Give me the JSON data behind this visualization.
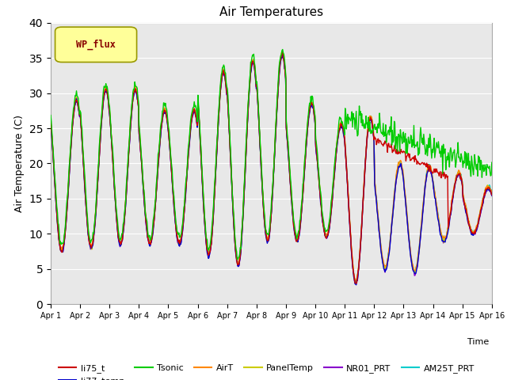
{
  "title": "Air Temperatures",
  "xlabel": "Time",
  "ylabel": "Air Temperature (C)",
  "ylim": [
    0,
    40
  ],
  "yticks": [
    0,
    5,
    10,
    15,
    20,
    25,
    30,
    35,
    40
  ],
  "xtick_labels": [
    "Apr 1",
    "Apr 2",
    "Apr 3",
    "Apr 4",
    "Apr 5",
    "Apr 6",
    "Apr 7",
    "Apr 8",
    "Apr 9",
    "Apr 10",
    "Apr 11",
    "Apr 12",
    "Apr 13",
    "Apr 14",
    "Apr 15",
    "Apr 16"
  ],
  "series_colors": {
    "li75_t": "#cc0000",
    "li77_temp": "#0000cc",
    "Tsonic": "#00cc00",
    "AirT": "#ff8800",
    "PanelTemp": "#cccc00",
    "NR01_PRT": "#8800cc",
    "AM25T_PRT": "#00cccc"
  },
  "bg_color": "#e8e8e8",
  "wp_flux_box_facecolor": "#ffff99",
  "wp_flux_text_color": "#880000",
  "wp_flux_border_color": "#999900",
  "linewidth": 1.0
}
